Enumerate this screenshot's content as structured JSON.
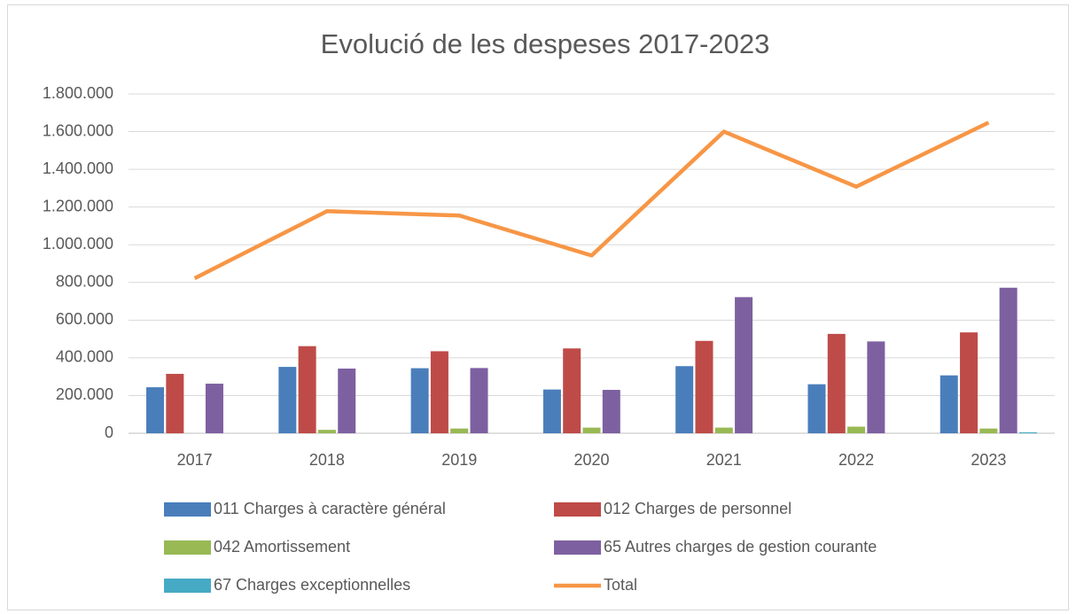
{
  "chart_data": {
    "type": "bar_line",
    "title": "Evolució de les despeses 2017-2023",
    "categories": [
      "2017",
      "2018",
      "2019",
      "2020",
      "2021",
      "2022",
      "2023"
    ],
    "series": [
      {
        "name": "011 Charges à caractère général",
        "color": "#4a7ebb",
        "type": "bar",
        "values": [
          244000,
          352000,
          345000,
          232000,
          356000,
          260000,
          307000
        ]
      },
      {
        "name": "012 Charges de personnel",
        "color": "#be4b48",
        "type": "bar",
        "values": [
          315000,
          462000,
          435000,
          450000,
          490000,
          527000,
          535000
        ]
      },
      {
        "name": "042 Amortissement",
        "color": "#98b954",
        "type": "bar",
        "values": [
          0,
          18000,
          25000,
          30000,
          30000,
          35000,
          25000
        ]
      },
      {
        "name": "65 Autres charges de gestion courante",
        "color": "#7d60a0",
        "type": "bar",
        "values": [
          263000,
          343000,
          346000,
          230000,
          722000,
          487000,
          772000
        ]
      },
      {
        "name": "67 Charges exceptionnelles",
        "color": "#46aac5",
        "type": "bar",
        "values": [
          0,
          0,
          0,
          0,
          0,
          0,
          5000
        ]
      },
      {
        "name": "Total",
        "color": "#f79646",
        "type": "line",
        "values": [
          822000,
          1178000,
          1155000,
          943000,
          1600000,
          1308000,
          1648000
        ]
      }
    ],
    "ylim": [
      0,
      1800000
    ],
    "yticks": [
      0,
      {
        "value": 200000,
        "label": "200.000"
      },
      {
        "value": 400000,
        "label": "400.000"
      },
      {
        "value": 600000,
        "label": "600.000"
      },
      {
        "value": 800000,
        "label": "800.000"
      },
      {
        "value": 1000000,
        "label": "1.000.000"
      },
      {
        "value": 1200000,
        "label": "1.200.000"
      },
      {
        "value": 1400000,
        "label": "1.400.000"
      },
      {
        "value": 1600000,
        "label": "1.600.000"
      },
      {
        "value": 1800000,
        "label": "1.800.000"
      }
    ],
    "grid": true
  }
}
